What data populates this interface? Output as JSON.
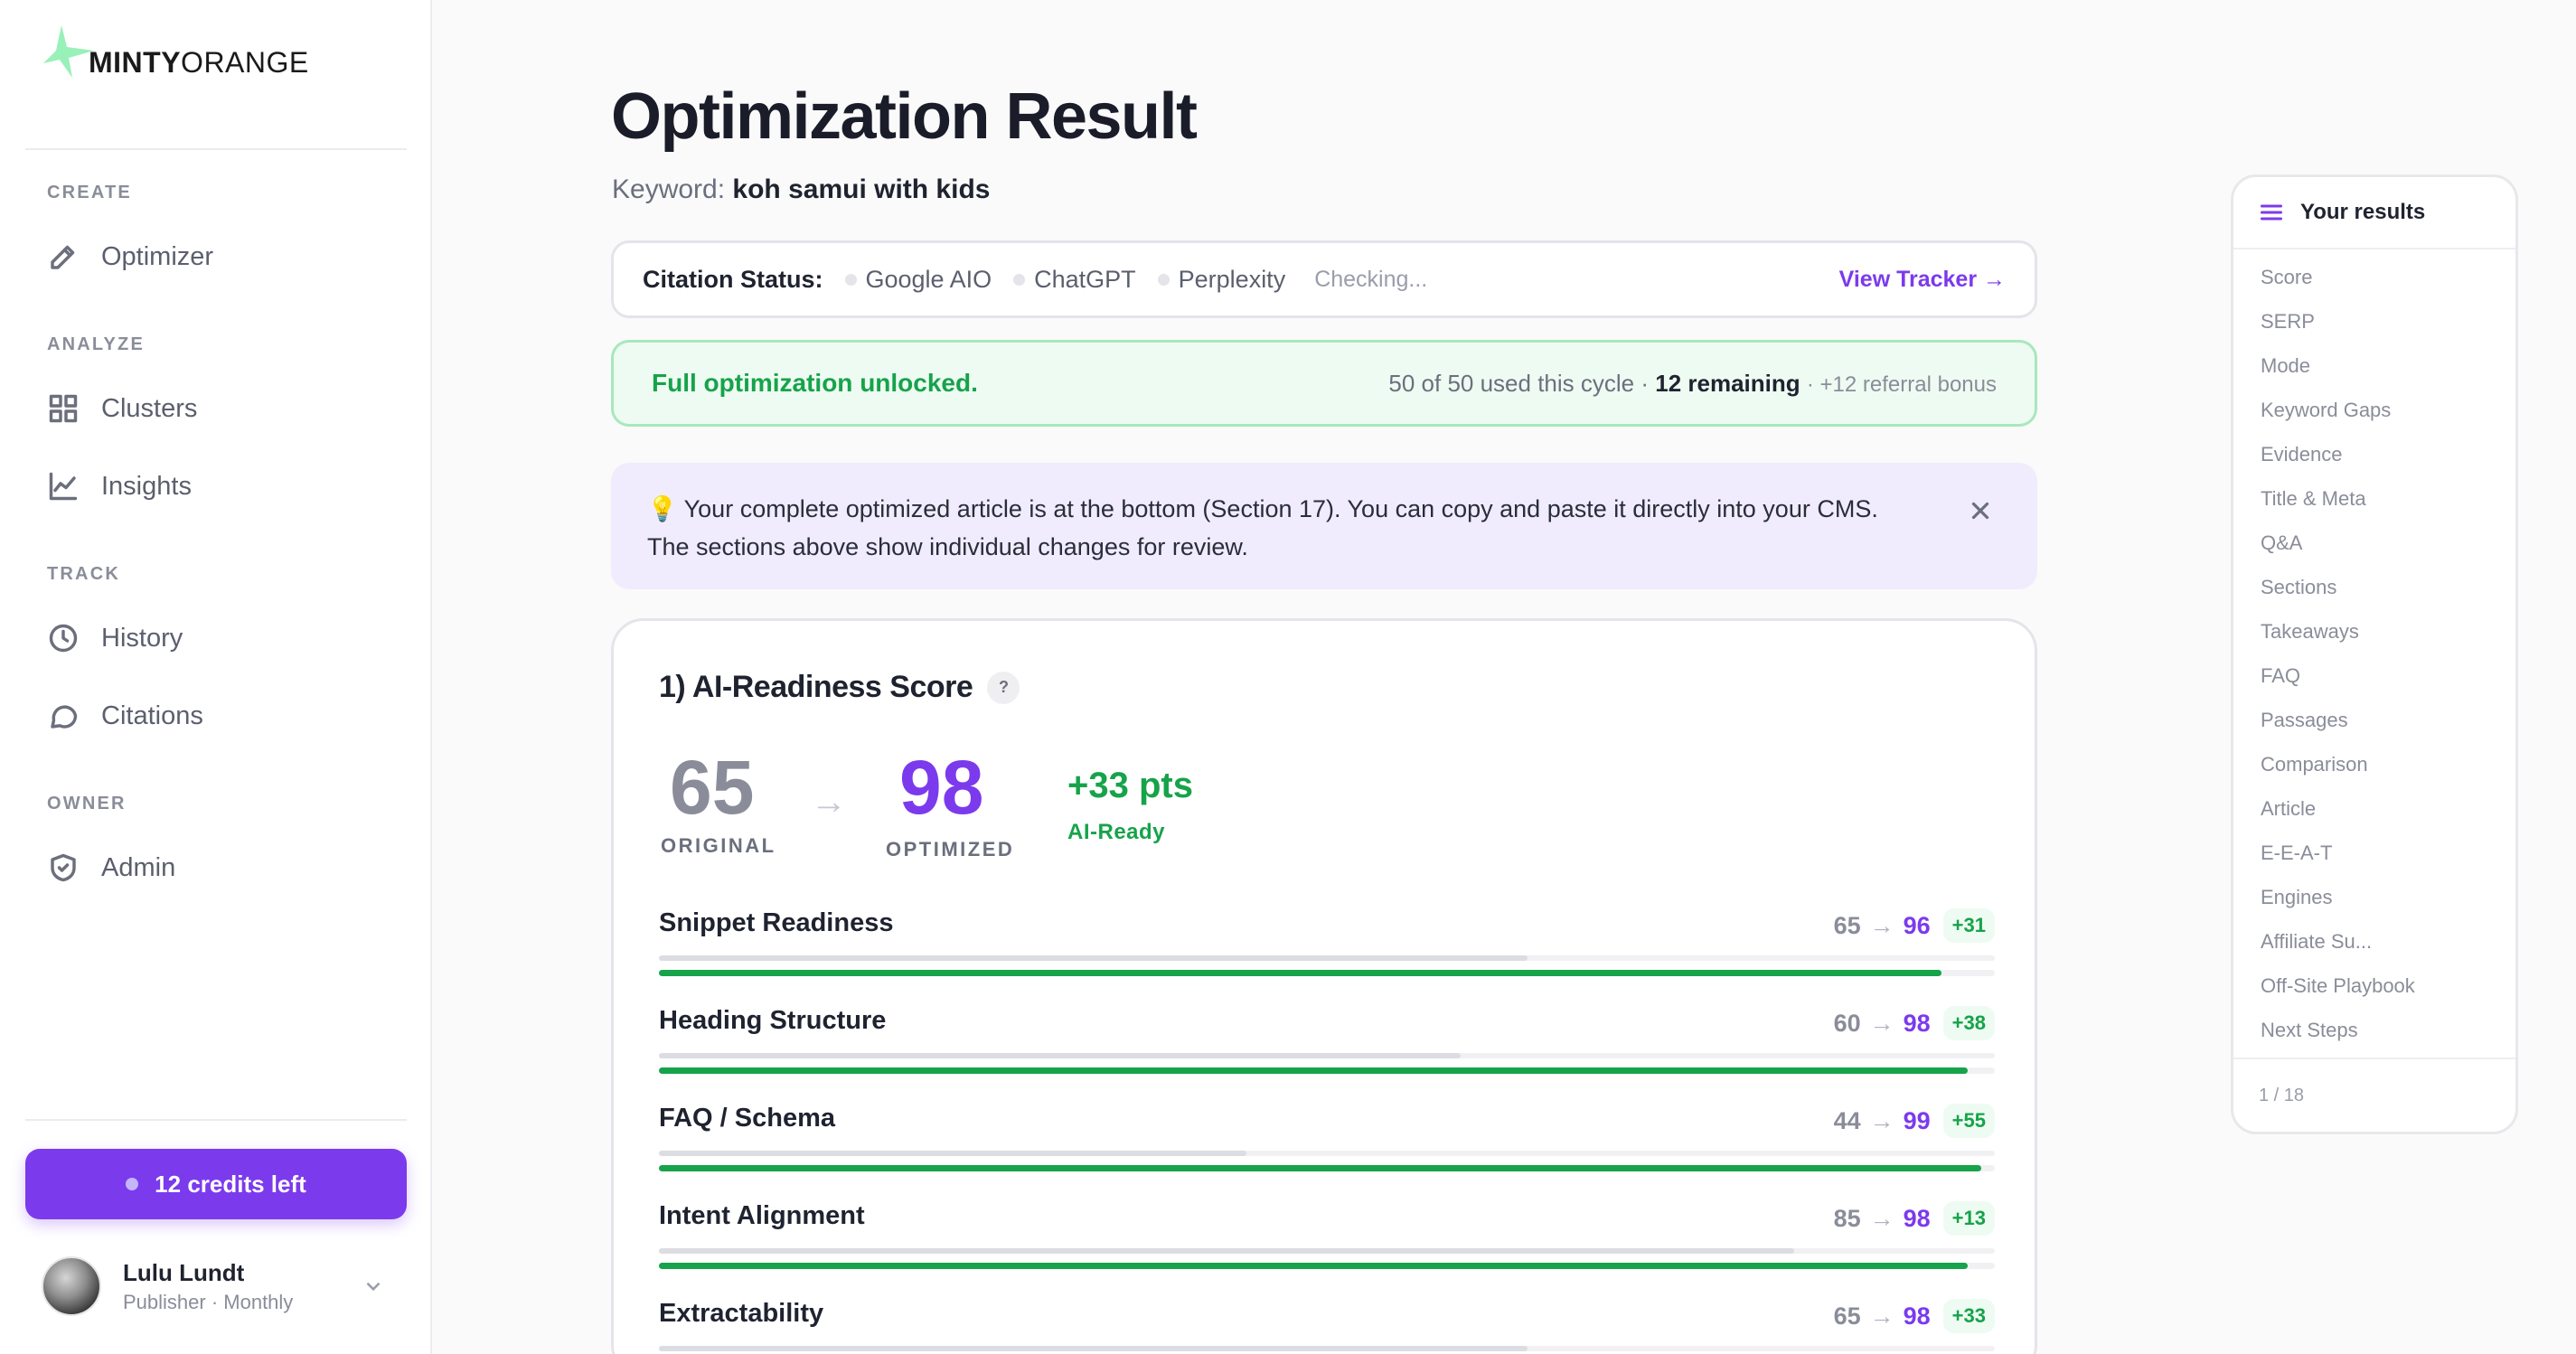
{
  "brand": {
    "name_bold": "MINTY",
    "name_regular": "ORANGE"
  },
  "sidebar": {
    "sections": [
      {
        "label": "CREATE",
        "items": [
          {
            "label": "Optimizer",
            "icon": "pencil-icon"
          }
        ]
      },
      {
        "label": "ANALYZE",
        "items": [
          {
            "label": "Clusters",
            "icon": "grid-icon"
          },
          {
            "label": "Insights",
            "icon": "chart-line-icon"
          }
        ]
      },
      {
        "label": "TRACK",
        "items": [
          {
            "label": "History",
            "icon": "clock-icon"
          },
          {
            "label": "Citations",
            "icon": "chat-bubble-icon"
          }
        ]
      },
      {
        "label": "OWNER",
        "items": [
          {
            "label": "Admin",
            "icon": "shield-check-icon"
          }
        ]
      }
    ],
    "credits_label": "12 credits left",
    "user": {
      "name": "Lulu Lundt",
      "plan": "Publisher · Monthly"
    }
  },
  "main": {
    "title": "Optimization Result",
    "keyword_label": "Keyword:",
    "keyword_value": "koh samui with kids",
    "citation": {
      "label": "Citation Status:",
      "engines": [
        "Google AIO",
        "ChatGPT",
        "Perplexity"
      ],
      "status": "Checking...",
      "tracker_link": "View Tracker →"
    },
    "unlock": {
      "title": "Full optimization unlocked.",
      "usage": "50 of 50 used this cycle ·",
      "remaining": "12 remaining",
      "referral": "· +12 referral bonus"
    },
    "info": {
      "bulb": "💡",
      "line1": "Your complete optimized article is at the bottom (Section 17). You can copy and paste it directly into your CMS.",
      "line2": "The sections above show individual changes for review."
    },
    "score": {
      "title": "1) AI-Readiness Score",
      "help": "?",
      "original": "65",
      "original_label": "ORIGINAL",
      "arrow": "→",
      "optimized": "98",
      "optimized_label": "OPTIMIZED",
      "delta": "+33 pts",
      "delta_label": "AI-Ready",
      "metrics": [
        {
          "name": "Snippet Readiness",
          "original": 65,
          "optimized": 96,
          "delta": "+31"
        },
        {
          "name": "Heading Structure",
          "original": 60,
          "optimized": 98,
          "delta": "+38"
        },
        {
          "name": "FAQ / Schema",
          "original": 44,
          "optimized": 99,
          "delta": "+55"
        },
        {
          "name": "Intent Alignment",
          "original": 85,
          "optimized": 98,
          "delta": "+13"
        },
        {
          "name": "Extractability",
          "original": 65,
          "optimized": 98,
          "delta": "+33"
        }
      ]
    }
  },
  "results_panel": {
    "title": "Your results",
    "items": [
      "Score",
      "SERP",
      "Mode",
      "Keyword Gaps",
      "Evidence",
      "Title & Meta",
      "Q&A",
      "Sections",
      "Takeaways",
      "FAQ",
      "Passages",
      "Comparison",
      "Article",
      "E-E-A-T",
      "Engines",
      "Affiliate Su...",
      "Off-Site Playbook",
      "Next Steps"
    ],
    "footer": "1 / 18"
  },
  "colors": {
    "accent": "#7c3aed",
    "success": "#16a34a",
    "brand_mint": "#6ee7b7"
  }
}
